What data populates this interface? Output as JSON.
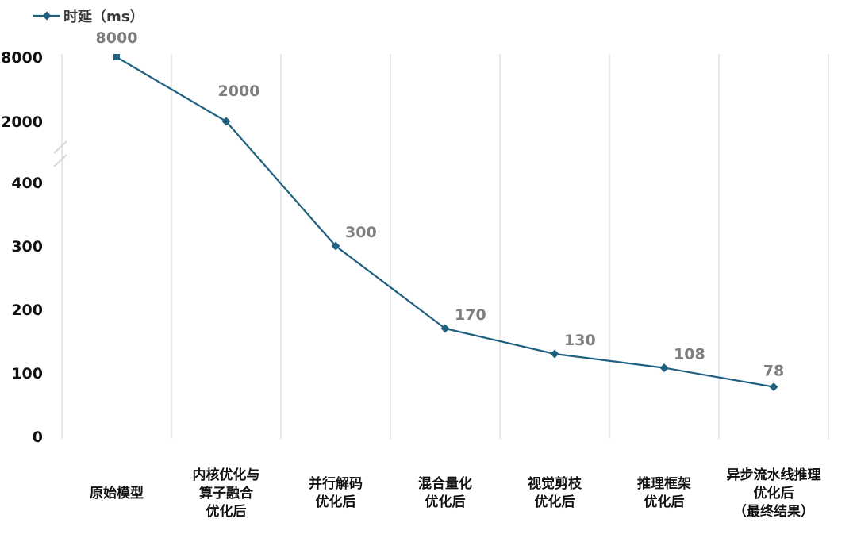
{
  "chart_data": {
    "type": "line",
    "legend_position": "top-left",
    "grid": "vertical",
    "y_axis_break": true,
    "y_ticks": [
      "0",
      "100",
      "200",
      "300",
      "400",
      "2000",
      "8000"
    ],
    "categories": [
      "原始模型",
      "内核优化与\n算子融合\n优化后",
      "并行解码\n优化后",
      "混合量化\n优化后",
      "视觉剪枝\n优化后",
      "推理框架\n优化后",
      "异步流水线推理\n优化后\n（最终结果）"
    ],
    "series": [
      {
        "name": "时延（ms）",
        "color": "#1f5f7f",
        "values": [
          8000,
          2000,
          300,
          170,
          130,
          108,
          78
        ],
        "labels": [
          "8000",
          "2000",
          "300",
          "170",
          "130",
          "108",
          "78"
        ]
      }
    ]
  }
}
